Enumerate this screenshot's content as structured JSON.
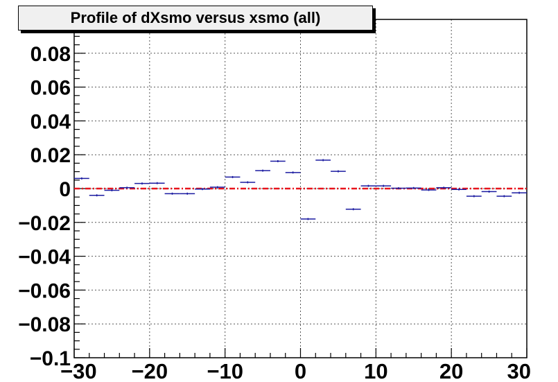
{
  "chart_data": {
    "type": "scatter",
    "title": "Profile of dXsmo versus xsmo (all)",
    "xlabel": "",
    "ylabel": "",
    "xlim": [
      -30,
      30
    ],
    "ylim": [
      -0.1,
      0.1
    ],
    "grid": true,
    "reference_line": {
      "y": 0,
      "color": "#e8141c",
      "style": "dash-dot"
    },
    "marker_color": "#1a1aa0",
    "bin_width": 2,
    "x_ticks": [
      {
        "value": -30,
        "label": "−30"
      },
      {
        "value": -20,
        "label": "−20"
      },
      {
        "value": -10,
        "label": "−10"
      },
      {
        "value": 0,
        "label": "0"
      },
      {
        "value": 10,
        "label": "10"
      },
      {
        "value": 20,
        "label": "20"
      },
      {
        "value": 30,
        "label": "30"
      }
    ],
    "y_ticks": [
      {
        "value": -0.1,
        "label": "−0.1"
      },
      {
        "value": -0.08,
        "label": "−0.08"
      },
      {
        "value": -0.06,
        "label": "−0.06"
      },
      {
        "value": -0.04,
        "label": "−0.04"
      },
      {
        "value": -0.02,
        "label": "−0.02"
      },
      {
        "value": 0,
        "label": "0"
      },
      {
        "value": 0.02,
        "label": "0.02"
      },
      {
        "value": 0.04,
        "label": "0.04"
      },
      {
        "value": 0.06,
        "label": "0.06"
      },
      {
        "value": 0.08,
        "label": "0.08"
      }
    ],
    "series": [
      {
        "x": [
          -29,
          -27,
          -25,
          -23,
          -21,
          -19,
          -17,
          -15,
          -13,
          -11,
          -9,
          -7,
          -5,
          -3,
          -1,
          1,
          3,
          5,
          7,
          9,
          11,
          13,
          15,
          17,
          19,
          21,
          23,
          25,
          27,
          29
        ],
        "y": [
          0.006,
          -0.004,
          -0.001,
          0.0005,
          0.003,
          0.0032,
          -0.003,
          -0.003,
          -0.0003,
          0.0008,
          0.0068,
          0.0037,
          0.0106,
          0.0162,
          0.0095,
          -0.018,
          0.0168,
          0.0102,
          -0.0122,
          0.0016,
          0.0016,
          0.0002,
          0.0003,
          -0.0008,
          0.0005,
          -0.0005,
          -0.0045,
          -0.0018,
          -0.0045,
          -0.0025
        ]
      }
    ]
  }
}
